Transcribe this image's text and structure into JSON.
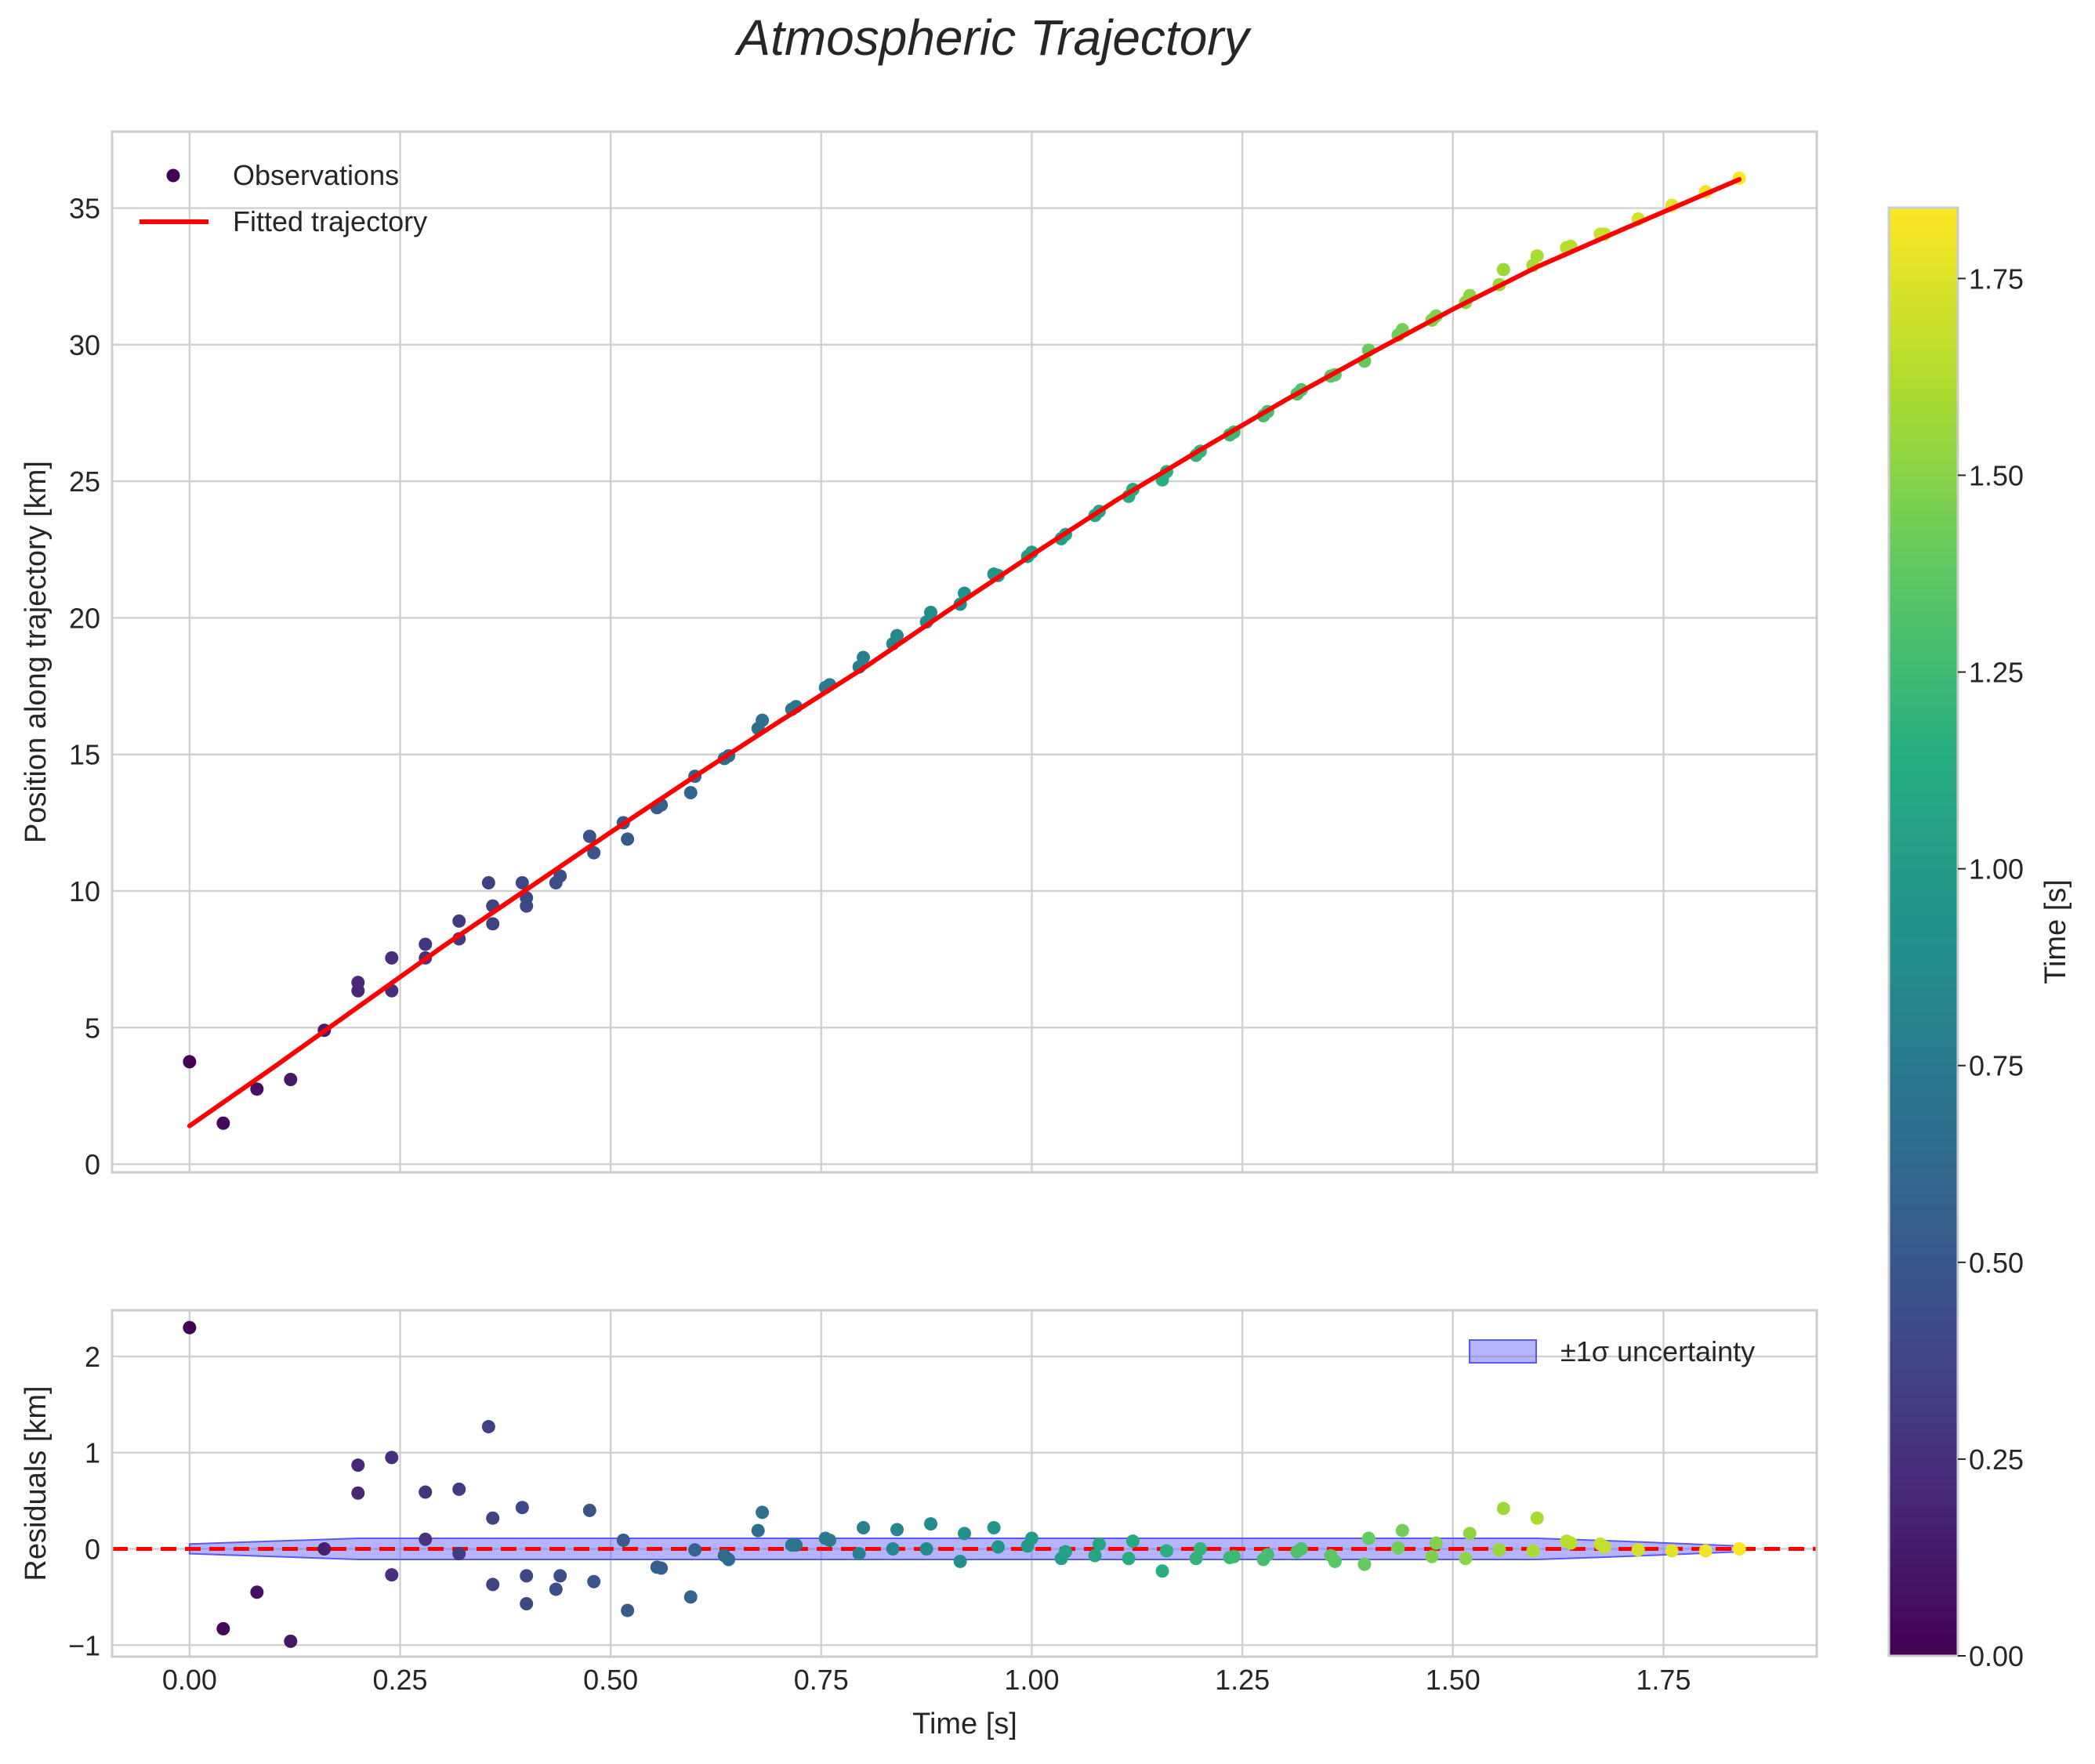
{
  "chart_data": [
    {
      "type": "scatter",
      "panel": "main",
      "title": "Atmospheric Trajectory",
      "xlabel": "Time [s]",
      "ylabel": "Position along trajectory [km]",
      "xlim": [
        -0.092,
        1.932
      ],
      "ylim": [
        -0.3,
        37.8
      ],
      "x_ticks": [
        0.0,
        0.25,
        0.5,
        0.75,
        1.0,
        1.25,
        1.5,
        1.75
      ],
      "x_tick_labels": [
        "0.00",
        "0.25",
        "0.50",
        "0.75",
        "1.00",
        "1.25",
        "1.50",
        "1.75"
      ],
      "y_ticks": [
        0,
        5,
        10,
        15,
        20,
        25,
        30,
        35
      ],
      "y_tick_labels": [
        "0",
        "5",
        "10",
        "15",
        "20",
        "25",
        "30",
        "35"
      ],
      "grid": true,
      "legend_position": "top-left",
      "series": [
        {
          "name": "Observations",
          "kind": "scatter",
          "colored_by": "time",
          "points": [
            [
              0.0,
              3.75
            ],
            [
              0.04,
              1.5
            ],
            [
              0.08,
              2.75
            ],
            [
              0.12,
              3.1
            ],
            [
              0.16,
              4.9
            ],
            [
              0.2,
              6.35
            ],
            [
              0.2,
              6.65
            ],
            [
              0.24,
              6.35
            ],
            [
              0.24,
              7.55
            ],
            [
              0.28,
              7.55
            ],
            [
              0.28,
              8.05
            ],
            [
              0.32,
              8.25
            ],
            [
              0.32,
              8.9
            ],
            [
              0.355,
              10.3
            ],
            [
              0.36,
              9.45
            ],
            [
              0.36,
              8.8
            ],
            [
              0.395,
              10.3
            ],
            [
              0.4,
              9.45
            ],
            [
              0.4,
              9.75
            ],
            [
              0.435,
              10.3
            ],
            [
              0.44,
              10.55
            ],
            [
              0.475,
              12.0
            ],
            [
              0.48,
              11.4
            ],
            [
              0.515,
              12.5
            ],
            [
              0.52,
              11.9
            ],
            [
              0.555,
              13.05
            ],
            [
              0.56,
              13.15
            ],
            [
              0.595,
              13.6
            ],
            [
              0.6,
              14.2
            ],
            [
              0.635,
              14.85
            ],
            [
              0.64,
              14.95
            ],
            [
              0.675,
              15.95
            ],
            [
              0.68,
              16.25
            ],
            [
              0.715,
              16.65
            ],
            [
              0.72,
              16.75
            ],
            [
              0.755,
              17.45
            ],
            [
              0.76,
              17.55
            ],
            [
              0.795,
              18.2
            ],
            [
              0.8,
              18.55
            ],
            [
              0.835,
              19.05
            ],
            [
              0.84,
              19.35
            ],
            [
              0.875,
              19.85
            ],
            [
              0.88,
              20.2
            ],
            [
              0.915,
              20.5
            ],
            [
              0.92,
              20.9
            ],
            [
              0.955,
              21.6
            ],
            [
              0.96,
              21.55
            ],
            [
              0.995,
              22.25
            ],
            [
              1.0,
              22.4
            ],
            [
              1.035,
              22.9
            ],
            [
              1.04,
              23.05
            ],
            [
              1.075,
              23.75
            ],
            [
              1.08,
              23.9
            ],
            [
              1.115,
              24.45
            ],
            [
              1.12,
              24.7
            ],
            [
              1.155,
              25.05
            ],
            [
              1.16,
              25.35
            ],
            [
              1.195,
              25.95
            ],
            [
              1.2,
              26.1
            ],
            [
              1.235,
              26.7
            ],
            [
              1.24,
              26.8
            ],
            [
              1.275,
              27.4
            ],
            [
              1.28,
              27.55
            ],
            [
              1.315,
              28.2
            ],
            [
              1.32,
              28.35
            ],
            [
              1.355,
              28.85
            ],
            [
              1.36,
              28.9
            ],
            [
              1.395,
              29.4
            ],
            [
              1.4,
              29.8
            ],
            [
              1.435,
              30.35
            ],
            [
              1.44,
              30.55
            ],
            [
              1.475,
              30.9
            ],
            [
              1.48,
              31.05
            ],
            [
              1.515,
              31.55
            ],
            [
              1.52,
              31.8
            ],
            [
              1.555,
              32.2
            ],
            [
              1.56,
              32.75
            ],
            [
              1.595,
              32.9
            ],
            [
              1.6,
              33.25
            ],
            [
              1.635,
              33.55
            ],
            [
              1.64,
              33.6
            ],
            [
              1.675,
              34.05
            ],
            [
              1.68,
              34.05
            ],
            [
              1.72,
              34.6
            ],
            [
              1.76,
              35.1
            ],
            [
              1.8,
              35.6
            ],
            [
              1.84,
              36.1
            ]
          ]
        },
        {
          "name": "Fitted trajectory",
          "kind": "line",
          "color": "#ff0000",
          "x": [
            0.0,
            0.1,
            0.2,
            0.3,
            0.4,
            0.5,
            0.6,
            0.7,
            0.8,
            0.9,
            1.0,
            1.1,
            1.2,
            1.3,
            1.4,
            1.5,
            1.6,
            1.7,
            1.84
          ],
          "y": [
            1.4,
            3.55,
            5.75,
            7.95,
            10.05,
            12.15,
            14.2,
            16.2,
            18.15,
            20.25,
            22.3,
            24.3,
            26.15,
            27.95,
            29.65,
            31.3,
            32.85,
            34.2,
            36.05
          ]
        }
      ]
    },
    {
      "type": "scatter",
      "panel": "residuals",
      "xlabel": "Time [s]",
      "ylabel": "Residuals [km]",
      "xlim": [
        -0.092,
        1.932
      ],
      "ylim": [
        -1.12,
        2.48
      ],
      "x_ticks": [
        0.0,
        0.25,
        0.5,
        0.75,
        1.0,
        1.25,
        1.5,
        1.75
      ],
      "x_tick_labels": [
        "0.00",
        "0.25",
        "0.50",
        "0.75",
        "1.00",
        "1.25",
        "1.50",
        "1.75"
      ],
      "y_ticks": [
        -1,
        0,
        1,
        2
      ],
      "y_tick_labels": [
        "−1",
        "0",
        "1",
        "2"
      ],
      "grid": true,
      "legend_position": "top-right",
      "zero_line": {
        "y": 0,
        "style": "dashed",
        "color": "#ff0000"
      },
      "series": [
        {
          "name": "Residuals",
          "kind": "scatter",
          "colored_by": "time",
          "points": [
            [
              0.0,
              2.3
            ],
            [
              0.04,
              -0.83
            ],
            [
              0.08,
              -0.45
            ],
            [
              0.12,
              -0.96
            ],
            [
              0.16,
              0.0
            ],
            [
              0.2,
              0.87
            ],
            [
              0.2,
              0.58
            ],
            [
              0.24,
              0.95
            ],
            [
              0.24,
              -0.27
            ],
            [
              0.28,
              0.59
            ],
            [
              0.28,
              0.1
            ],
            [
              0.32,
              0.62
            ],
            [
              0.32,
              -0.05
            ],
            [
              0.355,
              1.27
            ],
            [
              0.36,
              0.32
            ],
            [
              0.36,
              -0.37
            ],
            [
              0.395,
              0.43
            ],
            [
              0.4,
              -0.57
            ],
            [
              0.4,
              -0.28
            ],
            [
              0.435,
              -0.42
            ],
            [
              0.44,
              -0.28
            ],
            [
              0.475,
              0.4
            ],
            [
              0.48,
              -0.34
            ],
            [
              0.515,
              0.09
            ],
            [
              0.52,
              -0.64
            ],
            [
              0.555,
              -0.19
            ],
            [
              0.56,
              -0.2
            ],
            [
              0.595,
              -0.5
            ],
            [
              0.6,
              -0.01
            ],
            [
              0.635,
              -0.07
            ],
            [
              0.64,
              -0.11
            ],
            [
              0.675,
              0.19
            ],
            [
              0.68,
              0.38
            ],
            [
              0.715,
              0.04
            ],
            [
              0.72,
              0.04
            ],
            [
              0.755,
              0.11
            ],
            [
              0.76,
              0.09
            ],
            [
              0.795,
              -0.05
            ],
            [
              0.8,
              0.22
            ],
            [
              0.835,
              0.0
            ],
            [
              0.84,
              0.2
            ],
            [
              0.875,
              0.0
            ],
            [
              0.88,
              0.26
            ],
            [
              0.915,
              -0.13
            ],
            [
              0.92,
              0.16
            ],
            [
              0.955,
              0.22
            ],
            [
              0.96,
              0.02
            ],
            [
              0.995,
              0.03
            ],
            [
              1.0,
              0.11
            ],
            [
              1.035,
              -0.1
            ],
            [
              1.04,
              -0.03
            ],
            [
              1.075,
              -0.07
            ],
            [
              1.08,
              0.05
            ],
            [
              1.115,
              -0.1
            ],
            [
              1.12,
              0.08
            ],
            [
              1.155,
              -0.23
            ],
            [
              1.16,
              -0.02
            ],
            [
              1.195,
              -0.1
            ],
            [
              1.2,
              0.0
            ],
            [
              1.235,
              -0.09
            ],
            [
              1.24,
              -0.08
            ],
            [
              1.275,
              -0.11
            ],
            [
              1.28,
              -0.06
            ],
            [
              1.315,
              -0.03
            ],
            [
              1.32,
              0.0
            ],
            [
              1.355,
              -0.07
            ],
            [
              1.36,
              -0.13
            ],
            [
              1.395,
              -0.16
            ],
            [
              1.4,
              0.11
            ],
            [
              1.435,
              0.01
            ],
            [
              1.44,
              0.19
            ],
            [
              1.475,
              -0.08
            ],
            [
              1.48,
              0.06
            ],
            [
              1.515,
              -0.1
            ],
            [
              1.52,
              0.16
            ],
            [
              1.555,
              -0.01
            ],
            [
              1.56,
              0.42
            ],
            [
              1.595,
              -0.02
            ],
            [
              1.6,
              0.32
            ],
            [
              1.635,
              0.08
            ],
            [
              1.64,
              0.06
            ],
            [
              1.675,
              0.05
            ],
            [
              1.68,
              0.02
            ],
            [
              1.72,
              -0.01
            ],
            [
              1.76,
              -0.02
            ],
            [
              1.8,
              -0.02
            ],
            [
              1.84,
              0.0
            ]
          ]
        },
        {
          "name": "±1σ uncertainty",
          "kind": "band",
          "color": "#6b6bff",
          "x": [
            0.0,
            0.2,
            0.4,
            0.6,
            0.8,
            1.0,
            1.2,
            1.4,
            1.6,
            1.7,
            1.84
          ],
          "halfwidth": [
            0.05,
            0.11,
            0.11,
            0.11,
            0.11,
            0.11,
            0.11,
            0.11,
            0.11,
            0.08,
            0.03
          ]
        }
      ]
    },
    {
      "type": "colorbar",
      "label": "Time [s]",
      "colormap": "viridis",
      "range": [
        0.0,
        1.84
      ],
      "ticks": [
        0.0,
        0.25,
        0.5,
        0.75,
        1.0,
        1.25,
        1.5,
        1.75
      ],
      "tick_labels": [
        "0.00",
        "0.25",
        "0.50",
        "0.75",
        "1.00",
        "1.25",
        "1.50",
        "1.75"
      ]
    }
  ],
  "colors": {
    "fit_line": "#ff0000",
    "zero_line": "#ff0000",
    "band_fill": "#6b6bff",
    "band_edge": "#5a5aee",
    "grid": "#d0d0d0",
    "frame": "#cccccc",
    "text": "#262626"
  }
}
